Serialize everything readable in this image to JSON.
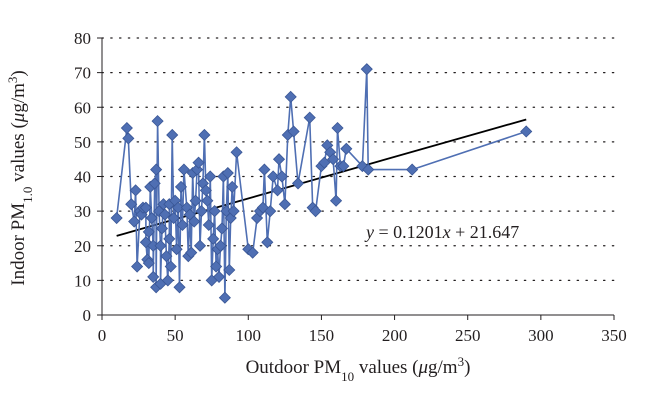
{
  "chart_data": {
    "type": "scatter",
    "xlabel": {
      "pre": "Outdoor PM",
      "sub": "10",
      "post": " values (",
      "mu": "μ",
      "post2": "g/m",
      "sup": "3",
      "end": ")"
    },
    "ylabel": {
      "pre": "Indoor PM",
      "sub": "1.0",
      "post": " values (",
      "mu": "μ",
      "post2": "g/m",
      "sup": "3",
      "end": ")"
    },
    "xlim": [
      0,
      350
    ],
    "ylim": [
      0,
      80
    ],
    "x_ticks": [
      0,
      50,
      100,
      150,
      200,
      250,
      300,
      350
    ],
    "y_ticks": [
      0,
      10,
      20,
      30,
      40,
      50,
      60,
      70,
      80
    ],
    "grid": "horizontal dotted",
    "colors": {
      "series": "#4f6fb3",
      "marker_edge": "#3a5796",
      "trendline": "#000000",
      "axis": "#231f20"
    },
    "marker": "diamond",
    "trendline": {
      "slope": 0.1201,
      "intercept": 21.647,
      "x_range": [
        10,
        290
      ]
    },
    "equation_label": {
      "y": "y",
      "eq": " = 0.1201",
      "x": "x",
      "rest": " + 21.647"
    },
    "series": [
      {
        "points": [
          [
            10,
            28
          ],
          [
            17,
            54
          ],
          [
            18,
            51
          ],
          [
            20,
            32
          ],
          [
            22,
            27
          ],
          [
            23,
            36
          ],
          [
            24,
            14
          ],
          [
            26,
            30
          ],
          [
            27,
            29
          ],
          [
            28,
            31
          ],
          [
            30,
            31
          ],
          [
            30,
            21
          ],
          [
            31,
            16
          ],
          [
            32,
            24
          ],
          [
            32,
            15
          ],
          [
            33,
            37
          ],
          [
            34,
            28
          ],
          [
            35,
            20
          ],
          [
            35,
            11
          ],
          [
            36,
            38
          ],
          [
            37,
            42
          ],
          [
            37,
            8
          ],
          [
            38,
            56
          ],
          [
            39,
            30
          ],
          [
            40,
            20
          ],
          [
            40,
            9
          ],
          [
            41,
            25
          ],
          [
            42,
            32
          ],
          [
            43,
            29
          ],
          [
            44,
            17
          ],
          [
            45,
            10
          ],
          [
            46,
            22
          ],
          [
            46,
            32
          ],
          [
            47,
            14
          ],
          [
            48,
            52
          ],
          [
            49,
            28
          ],
          [
            50,
            33
          ],
          [
            51,
            19
          ],
          [
            52,
            31
          ],
          [
            53,
            8
          ],
          [
            54,
            37
          ],
          [
            55,
            26
          ],
          [
            56,
            42
          ],
          [
            58,
            31
          ],
          [
            59,
            17
          ],
          [
            60,
            29
          ],
          [
            61,
            18
          ],
          [
            62,
            41
          ],
          [
            63,
            27
          ],
          [
            64,
            33
          ],
          [
            65,
            42
          ],
          [
            66,
            44
          ],
          [
            67,
            20
          ],
          [
            68,
            30
          ],
          [
            69,
            38
          ],
          [
            70,
            52
          ],
          [
            71,
            36
          ],
          [
            72,
            33
          ],
          [
            73,
            26
          ],
          [
            74,
            40
          ],
          [
            75,
            10
          ],
          [
            76,
            22
          ],
          [
            77,
            30
          ],
          [
            78,
            14
          ],
          [
            79,
            19
          ],
          [
            80,
            11
          ],
          [
            81,
            20
          ],
          [
            82,
            25
          ],
          [
            83,
            40
          ],
          [
            84,
            5
          ],
          [
            85,
            30
          ],
          [
            86,
            41
          ],
          [
            87,
            13
          ],
          [
            88,
            28
          ],
          [
            89,
            37
          ],
          [
            90,
            30
          ],
          [
            92,
            47
          ],
          [
            100,
            19
          ],
          [
            103,
            18
          ],
          [
            106,
            28
          ],
          [
            108,
            30
          ],
          [
            110,
            31
          ],
          [
            111,
            42
          ],
          [
            113,
            21
          ],
          [
            115,
            30
          ],
          [
            117,
            40
          ],
          [
            120,
            36
          ],
          [
            121,
            45
          ],
          [
            123,
            40
          ],
          [
            125,
            32
          ],
          [
            127,
            52
          ],
          [
            129,
            63
          ],
          [
            131,
            53
          ],
          [
            134,
            38
          ],
          [
            142,
            57
          ],
          [
            144,
            31
          ],
          [
            146,
            30
          ],
          [
            150,
            43
          ],
          [
            152,
            44
          ],
          [
            154,
            49
          ],
          [
            156,
            47
          ],
          [
            158,
            45
          ],
          [
            160,
            33
          ],
          [
            161,
            54
          ],
          [
            163,
            43
          ],
          [
            165,
            43
          ],
          [
            167,
            48
          ],
          [
            178,
            43
          ],
          [
            181,
            71
          ],
          [
            182,
            42
          ],
          [
            212,
            42
          ],
          [
            290,
            53
          ]
        ]
      }
    ]
  }
}
